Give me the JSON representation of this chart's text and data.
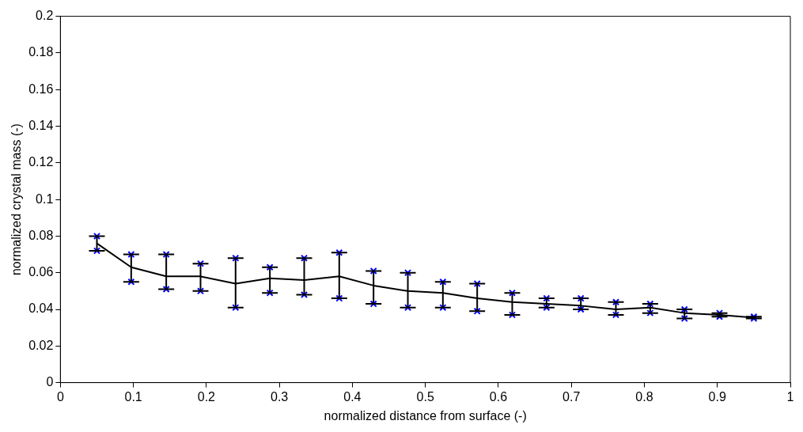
{
  "chart_data": {
    "type": "line",
    "xlabel": "normalized distance from surface (-)",
    "ylabel": "normalized crystal mass (-)",
    "xlim": [
      0,
      1
    ],
    "xticks": [
      0,
      0.1,
      0.2,
      0.3,
      0.4,
      0.5,
      0.6,
      0.7,
      0.8,
      0.9,
      1
    ],
    "ylim": [
      0,
      0.2
    ],
    "yticks": [
      0,
      0.02,
      0.04,
      0.06,
      0.08,
      0.1,
      0.12,
      0.14,
      0.16,
      0.18,
      0.2
    ],
    "grid": false,
    "legend": false,
    "series": [
      {
        "type": "line",
        "color": "#000000",
        "marker": "none",
        "line_style": "solid",
        "x": [
          0.05,
          0.097,
          0.145,
          0.192,
          0.24,
          0.287,
          0.334,
          0.382,
          0.429,
          0.476,
          0.524,
          0.571,
          0.619,
          0.666,
          0.713,
          0.761,
          0.808,
          0.855,
          0.903,
          0.95
        ],
        "values": [
          0.076,
          0.063,
          0.058,
          0.058,
          0.054,
          0.057,
          0.056,
          0.058,
          0.053,
          0.05,
          0.049,
          0.046,
          0.044,
          0.043,
          0.042,
          0.04,
          0.041,
          0.038,
          0.037,
          0.0355
        ],
        "errors": [
          [
            0.072,
            0.08
          ],
          [
            0.055,
            0.07
          ],
          [
            0.051,
            0.07
          ],
          [
            0.05,
            0.065
          ],
          [
            0.041,
            0.068
          ],
          [
            0.049,
            0.063
          ],
          [
            0.048,
            0.068
          ],
          [
            0.046,
            0.071
          ],
          [
            0.043,
            0.061
          ],
          [
            0.041,
            0.06
          ],
          [
            0.041,
            0.055
          ],
          [
            0.039,
            0.054
          ],
          [
            0.037,
            0.049
          ],
          [
            0.041,
            0.046
          ],
          [
            0.04,
            0.046
          ],
          [
            0.037,
            0.044
          ],
          [
            0.038,
            0.043
          ],
          [
            0.035,
            0.04
          ],
          [
            0.036,
            0.038
          ],
          [
            0.035,
            0.036
          ]
        ]
      },
      {
        "type": "scatter",
        "color": "#0000ff",
        "marker": "cross",
        "x": [
          0.05,
          0.05,
          0.097,
          0.097,
          0.145,
          0.145,
          0.192,
          0.192,
          0.24,
          0.24,
          0.287,
          0.287,
          0.334,
          0.334,
          0.382,
          0.382,
          0.429,
          0.429,
          0.476,
          0.476,
          0.524,
          0.524,
          0.571,
          0.571,
          0.619,
          0.619,
          0.666,
          0.666,
          0.713,
          0.713,
          0.761,
          0.761,
          0.808,
          0.808,
          0.855,
          0.855,
          0.903,
          0.903,
          0.95,
          0.95
        ],
        "values": [
          0.072,
          0.08,
          0.055,
          0.07,
          0.051,
          0.07,
          0.05,
          0.065,
          0.041,
          0.068,
          0.049,
          0.063,
          0.048,
          0.068,
          0.046,
          0.071,
          0.043,
          0.061,
          0.041,
          0.06,
          0.041,
          0.055,
          0.039,
          0.054,
          0.037,
          0.049,
          0.041,
          0.046,
          0.04,
          0.046,
          0.037,
          0.044,
          0.038,
          0.043,
          0.035,
          0.04,
          0.036,
          0.038,
          0.035,
          0.036
        ]
      }
    ]
  }
}
